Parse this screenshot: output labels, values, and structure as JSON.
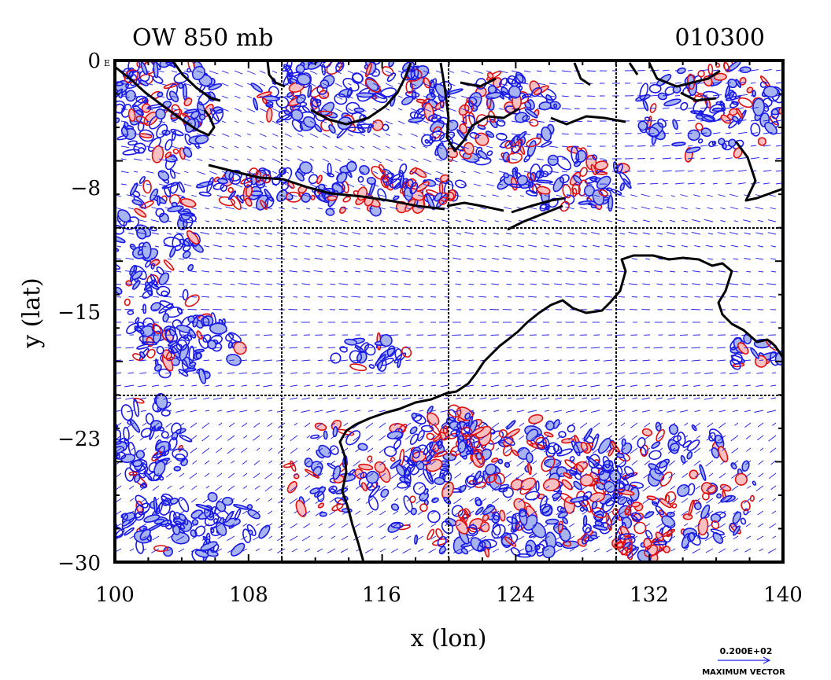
{
  "title_left": "OW 850 mb",
  "title_right": "010300",
  "axes": {
    "xlabel": "x (lon)",
    "ylabel": "y (lat)",
    "xlim": [
      100,
      140
    ],
    "ylim": [
      -30,
      0
    ],
    "x_ticks": [
      "100",
      "108",
      "116",
      "124",
      "132",
      "140"
    ],
    "y_ticks": [
      "0",
      "−8",
      "−15",
      "−23",
      "−30"
    ],
    "corner_label": "E",
    "grid": true
  },
  "legend": {
    "vector_scale": "0.200E+02",
    "vector_caption": "MAXIMUM VECTOR"
  },
  "colors": {
    "land_outline": "#000000",
    "negative_contour": "#1a1ae6",
    "negative_fill": "#a8b4f0",
    "positive_contour": "#e01010",
    "positive_fill": "#f8c0c0",
    "vector": "#1e1ee8"
  }
}
